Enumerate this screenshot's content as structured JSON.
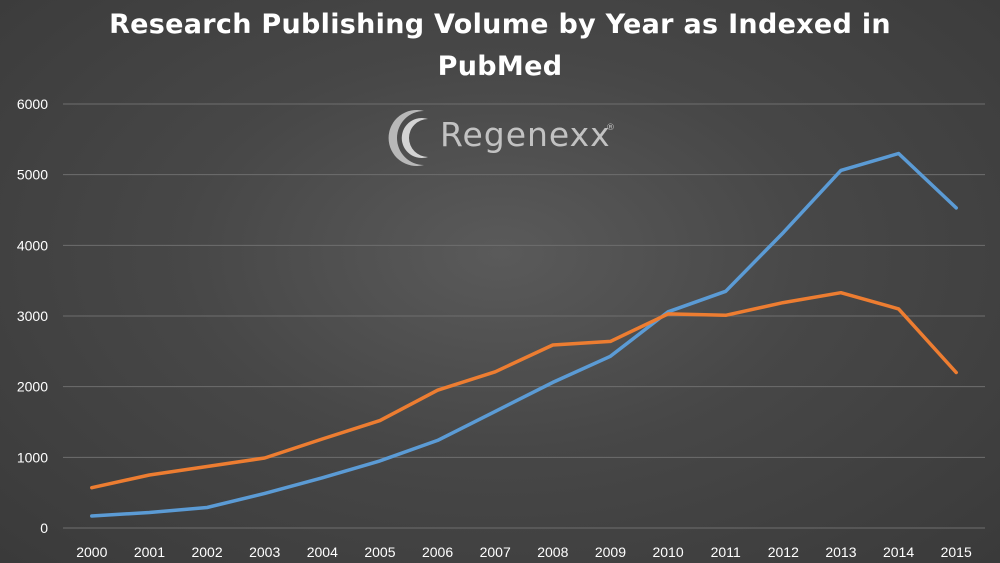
{
  "chart_data": {
    "type": "line",
    "title": "Research Publishing Volume by Year as Indexed in PubMed",
    "title_lines": [
      "Research Publishing Volume by Year as Indexed in",
      "PubMed"
    ],
    "categories": [
      "2000",
      "2001",
      "2002",
      "2003",
      "2004",
      "2005",
      "2006",
      "2007",
      "2008",
      "2009",
      "2010",
      "2011",
      "2012",
      "2013",
      "2014",
      "2015"
    ],
    "ylim": [
      0,
      6000
    ],
    "yticks": [
      0,
      1000,
      2000,
      3000,
      4000,
      5000,
      6000
    ],
    "grid": true,
    "xlabel": "",
    "ylabel": "",
    "series": [
      {
        "color": "#5b9bd5",
        "values": [
          170,
          220,
          290,
          490,
          710,
          950,
          1240,
          1650,
          2060,
          2430,
          3060,
          3350,
          4180,
          5060,
          5300,
          4530
        ]
      },
      {
        "color": "#ed7d31",
        "values": [
          570,
          750,
          870,
          990,
          1260,
          1520,
          1950,
          2210,
          2590,
          2640,
          3030,
          3010,
          3190,
          3330,
          3100,
          2200
        ]
      }
    ]
  },
  "logo": {
    "text": "Regenexx",
    "mark": "®"
  },
  "colors": {
    "background": "#404040",
    "grid": "#6e6e6e",
    "text": "#ffffff"
  }
}
